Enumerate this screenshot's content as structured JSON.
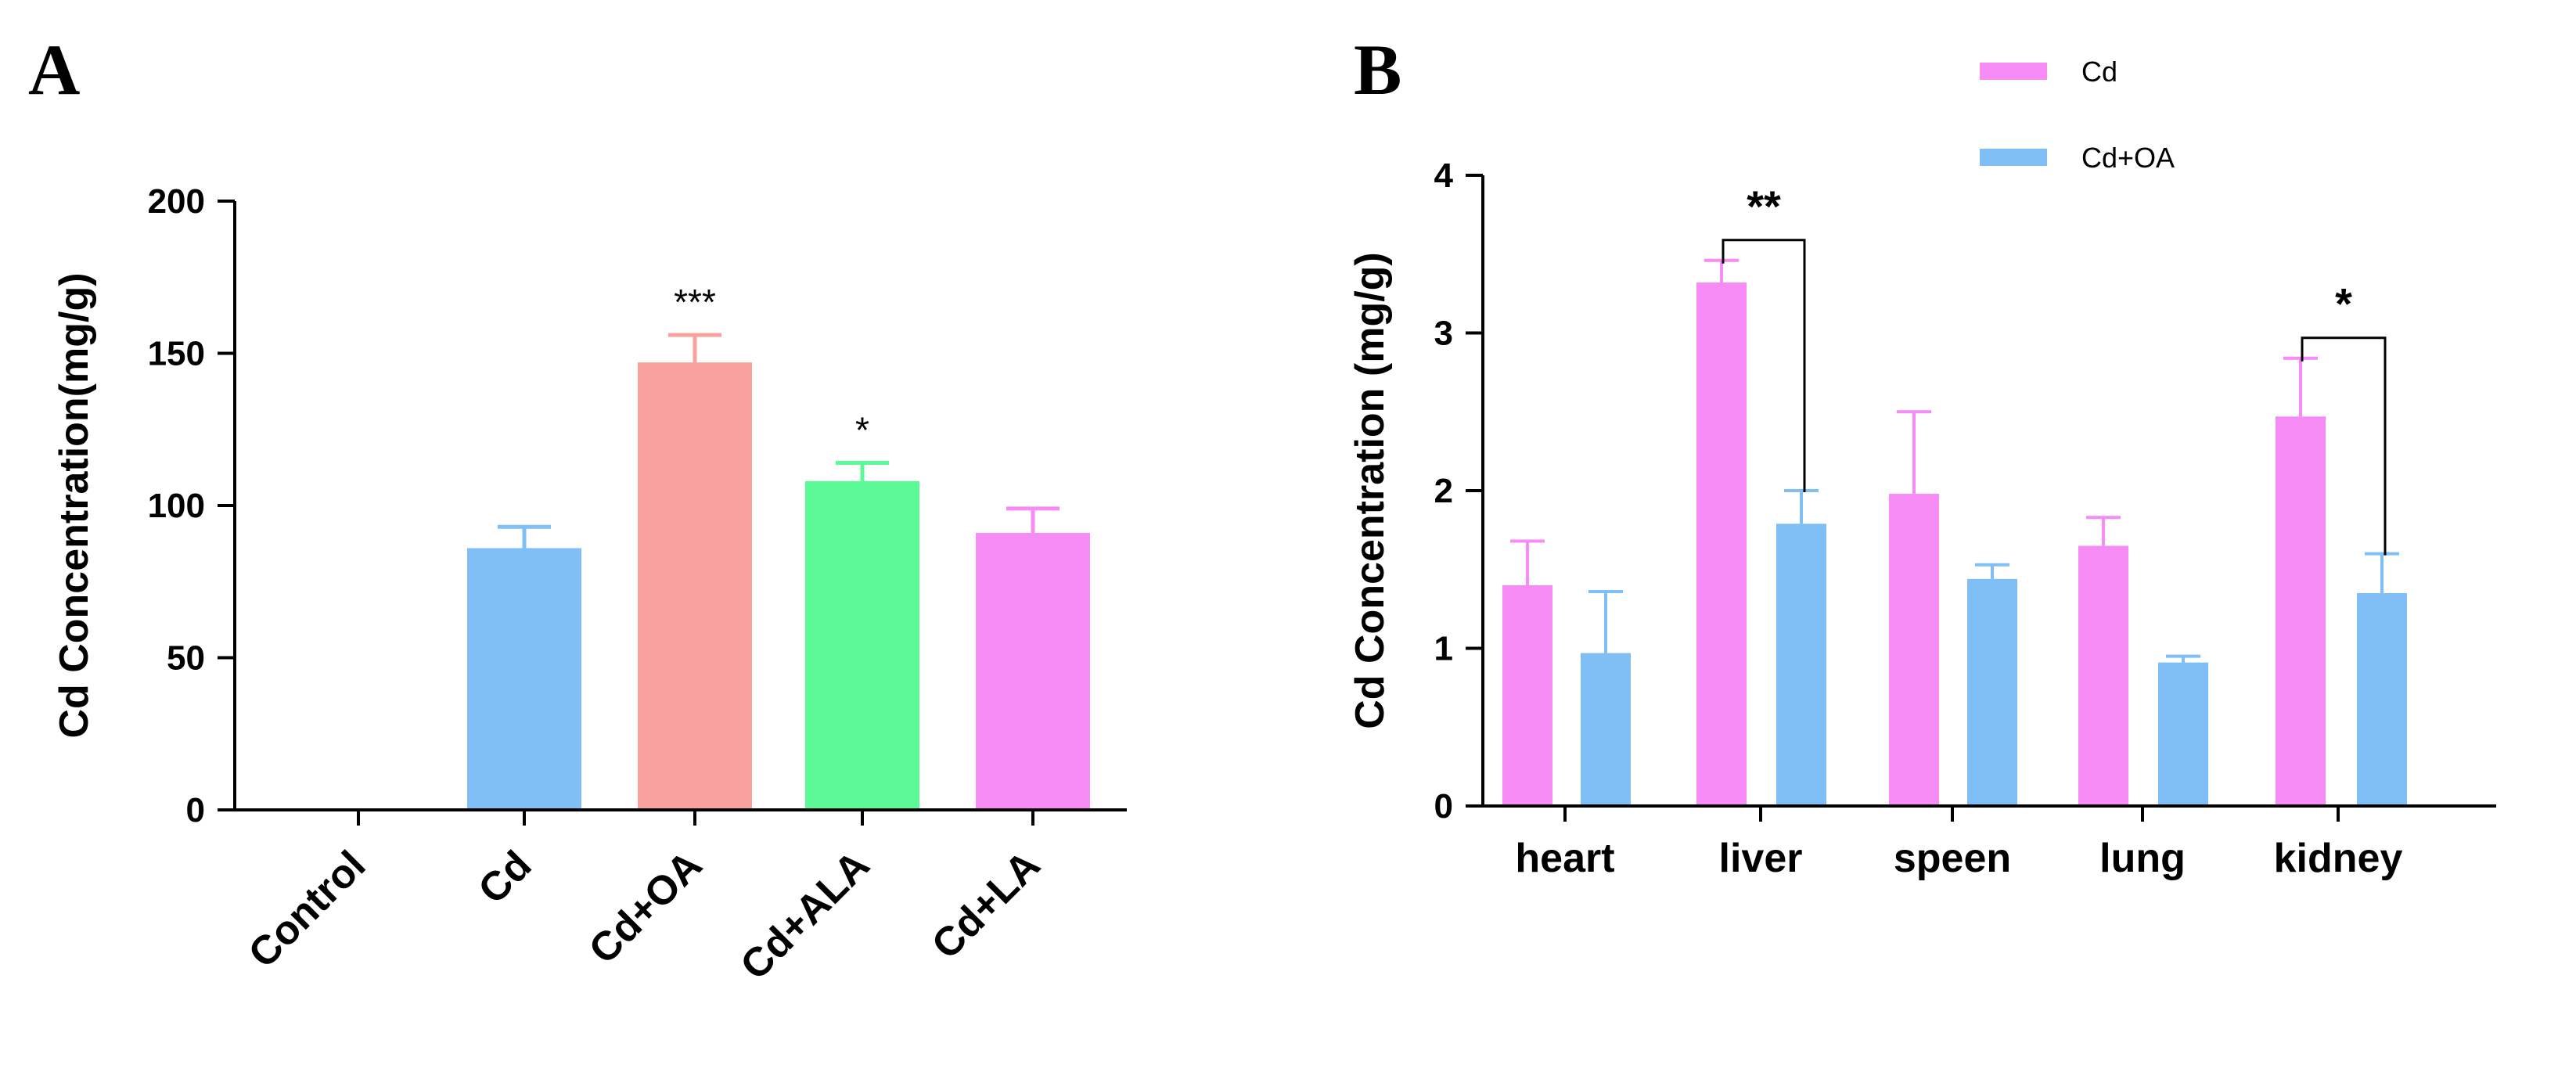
{
  "panel_labels": {
    "a": "A",
    "b": "B"
  },
  "colors": {
    "Control": "#ffffff",
    "Cd": "#7fbff5",
    "Cd+OA": "#f8a19d",
    "Cd+ALA": "#5cfa96",
    "Cd+LA": "#f68bf6",
    "seriesCd": "#f68bf6",
    "seriesCdOA": "#7fbff5"
  },
  "chart_data": [
    {
      "id": "A",
      "type": "bar",
      "title": "",
      "xlabel": "",
      "ylabel": "Cd Concentration(mg/g)",
      "ylim": [
        0,
        200
      ],
      "yticks": [
        "0",
        "50",
        "100",
        "150",
        "200"
      ],
      "categories": [
        "Control",
        "Cd",
        "Cd+OA",
        "Cd+ALA",
        "Cd+LA"
      ],
      "values": [
        0,
        86,
        147,
        108,
        91
      ],
      "errors": [
        0,
        7,
        9,
        6,
        8
      ],
      "significance": [
        "",
        "",
        "***",
        "*",
        ""
      ]
    },
    {
      "id": "B",
      "type": "bar",
      "title": "",
      "xlabel": "",
      "ylabel": "Cd Concentration (mg/g)",
      "ylim": [
        0,
        4
      ],
      "yticks": [
        "0",
        "1",
        "2",
        "3",
        "4"
      ],
      "categories": [
        "heart",
        "liver",
        "speen",
        "lung",
        "kidney"
      ],
      "series": [
        {
          "name": "Cd",
          "values": [
            1.4,
            3.32,
            1.98,
            1.65,
            2.47
          ],
          "errors": [
            0.28,
            0.14,
            0.52,
            0.18,
            0.37
          ]
        },
        {
          "name": "Cd+OA",
          "values": [
            0.97,
            1.79,
            1.44,
            0.91,
            1.35
          ],
          "errors": [
            0.39,
            0.21,
            0.09,
            0.04,
            0.25
          ]
        }
      ],
      "legend_position": "top-right",
      "significance": [
        {
          "category": "liver",
          "label": "**"
        },
        {
          "category": "kidney",
          "label": "*"
        }
      ]
    }
  ]
}
